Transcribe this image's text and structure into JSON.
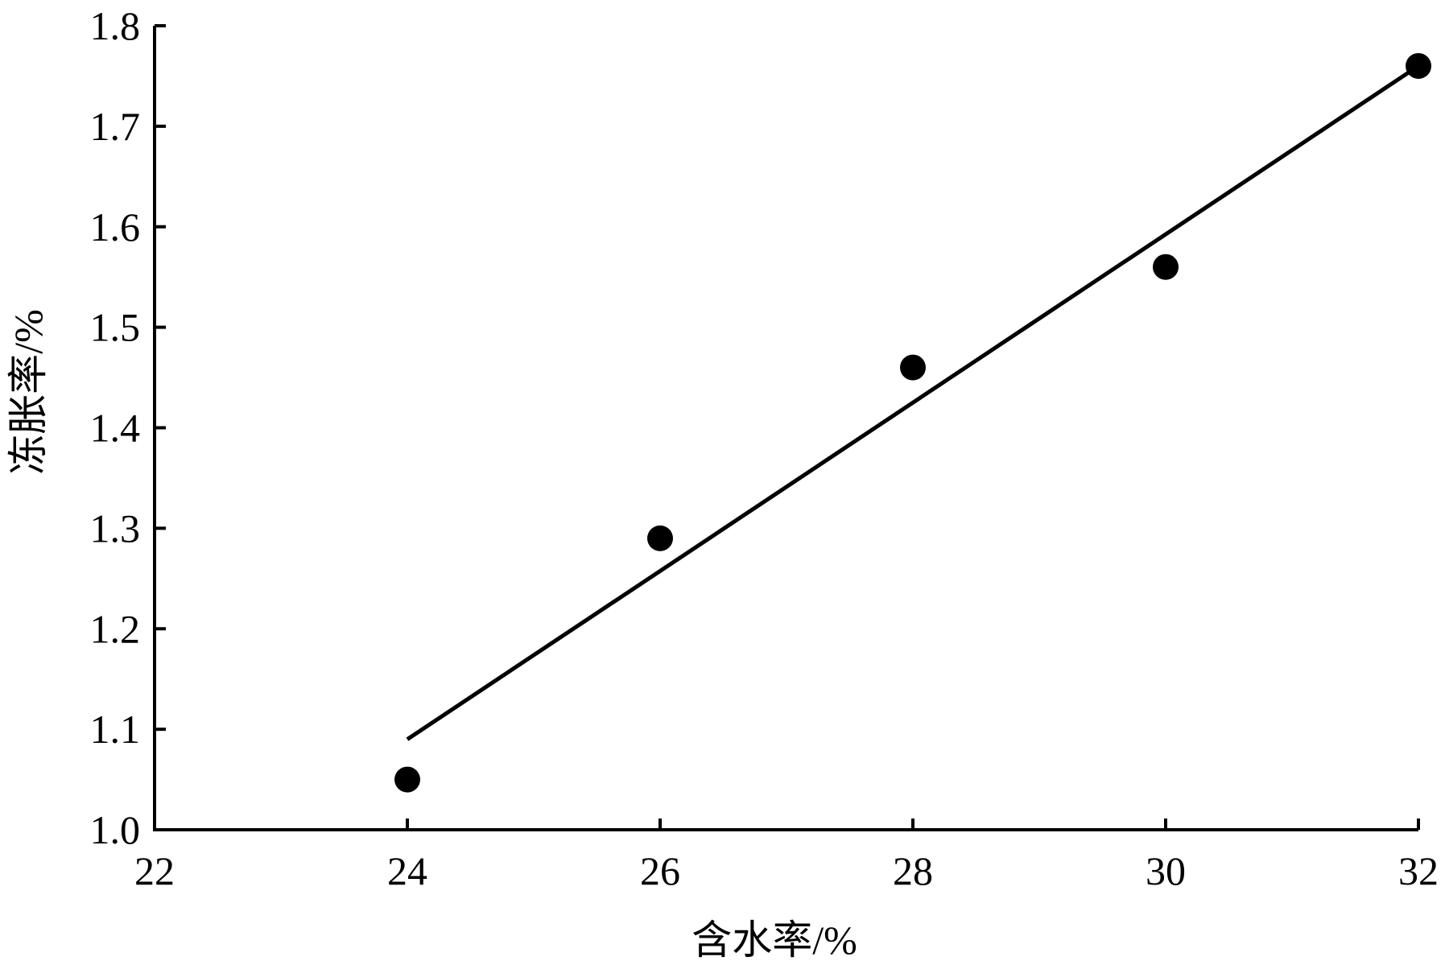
{
  "chart_data": {
    "type": "scatter",
    "title": "",
    "xlabel": "含水率/%",
    "ylabel": "冻胀率/%",
    "xlim": [
      22,
      32
    ],
    "ylim": [
      1.0,
      1.8
    ],
    "xticks": [
      "22",
      "24",
      "26",
      "28",
      "30",
      "32"
    ],
    "yticks": [
      "1.0",
      "1.1",
      "1.2",
      "1.3",
      "1.4",
      "1.5",
      "1.6",
      "1.7",
      "1.8"
    ],
    "grid": false,
    "legend": "none",
    "series": [
      {
        "points": [
          {
            "x": 24,
            "y": 1.05
          },
          {
            "x": 26,
            "y": 1.29
          },
          {
            "x": 28,
            "y": 1.46
          },
          {
            "x": 30,
            "y": 1.56
          },
          {
            "x": 32,
            "y": 1.76
          }
        ],
        "color": "#000000"
      }
    ],
    "fit_line": {
      "from": {
        "x": 24,
        "y": 1.09
      },
      "to": {
        "x": 32,
        "y": 1.76
      },
      "color": "#000000"
    }
  }
}
